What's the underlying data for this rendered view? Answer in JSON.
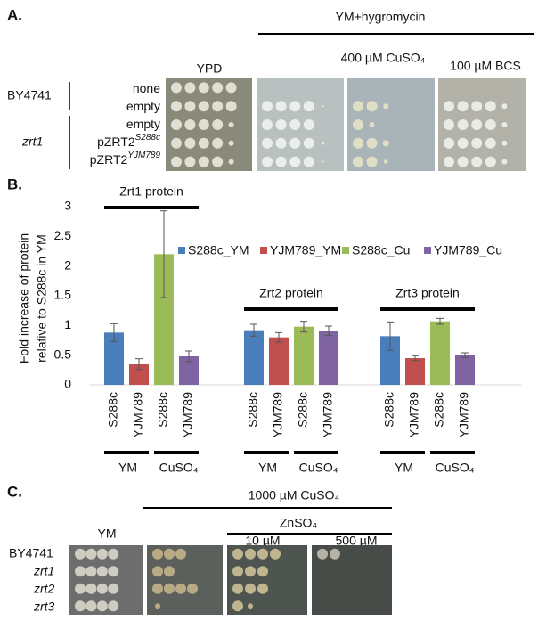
{
  "panel_a": {
    "letter": "A.",
    "treatment": "YM+hygromycin",
    "plates": [
      "YPD",
      "400 µM CuSO₄",
      "100 µM BCS"
    ],
    "strains": [
      "BY4741",
      "zrt1"
    ],
    "rows": [
      {
        "label": "none"
      },
      {
        "label": "empty"
      },
      {
        "label": "empty"
      },
      {
        "label": "pZRT2",
        "sup": "S288c"
      },
      {
        "label": "pZRT2",
        "sup": "YJM789"
      }
    ]
  },
  "panel_b": {
    "letter": "B."
  },
  "chart_data": {
    "type": "bar",
    "y_label": [
      "Fold increase of protein",
      "relative to S288c in YM"
    ],
    "categories": [
      "Zrt1 protein",
      "Zrt2 protein",
      "Zrt3 protein"
    ],
    "bar_labels": [
      "S288c",
      "YJM789",
      "S288c",
      "YJM789"
    ],
    "condition_labels": [
      "YM",
      "CuSO₄"
    ],
    "series": [
      {
        "name": "S288c_YM",
        "color": "#4a7ebb",
        "values": [
          0.88,
          0.92,
          0.82
        ],
        "errors": [
          0.15,
          0.1,
          0.24
        ]
      },
      {
        "name": "YJM789_YM",
        "color": "#c0504d",
        "values": [
          0.35,
          0.8,
          0.45
        ],
        "errors": [
          0.09,
          0.08,
          0.04
        ]
      },
      {
        "name": "S288c_Cu",
        "color": "#9bbb59",
        "values": [
          2.2,
          0.98,
          1.07
        ],
        "errors": [
          0.73,
          0.09,
          0.05
        ]
      },
      {
        "name": "YJM789_Cu",
        "color": "#8064a2",
        "values": [
          0.48,
          0.91,
          0.5
        ],
        "errors": [
          0.09,
          0.08,
          0.04
        ]
      }
    ],
    "ylim": [
      0,
      3
    ],
    "yticks": [
      0,
      0.5,
      1,
      1.5,
      2,
      2.5,
      3
    ],
    "grid": false
  },
  "panel_c": {
    "letter": "C.",
    "treatment": "1000 µM CuSO₄",
    "ym": "YM",
    "zinc": "ZnSO₄",
    "zinc_doses": [
      "10 µM",
      "500 µM"
    ],
    "strains": [
      "BY4741",
      "zrt1",
      "zrt2",
      "zrt3"
    ]
  }
}
